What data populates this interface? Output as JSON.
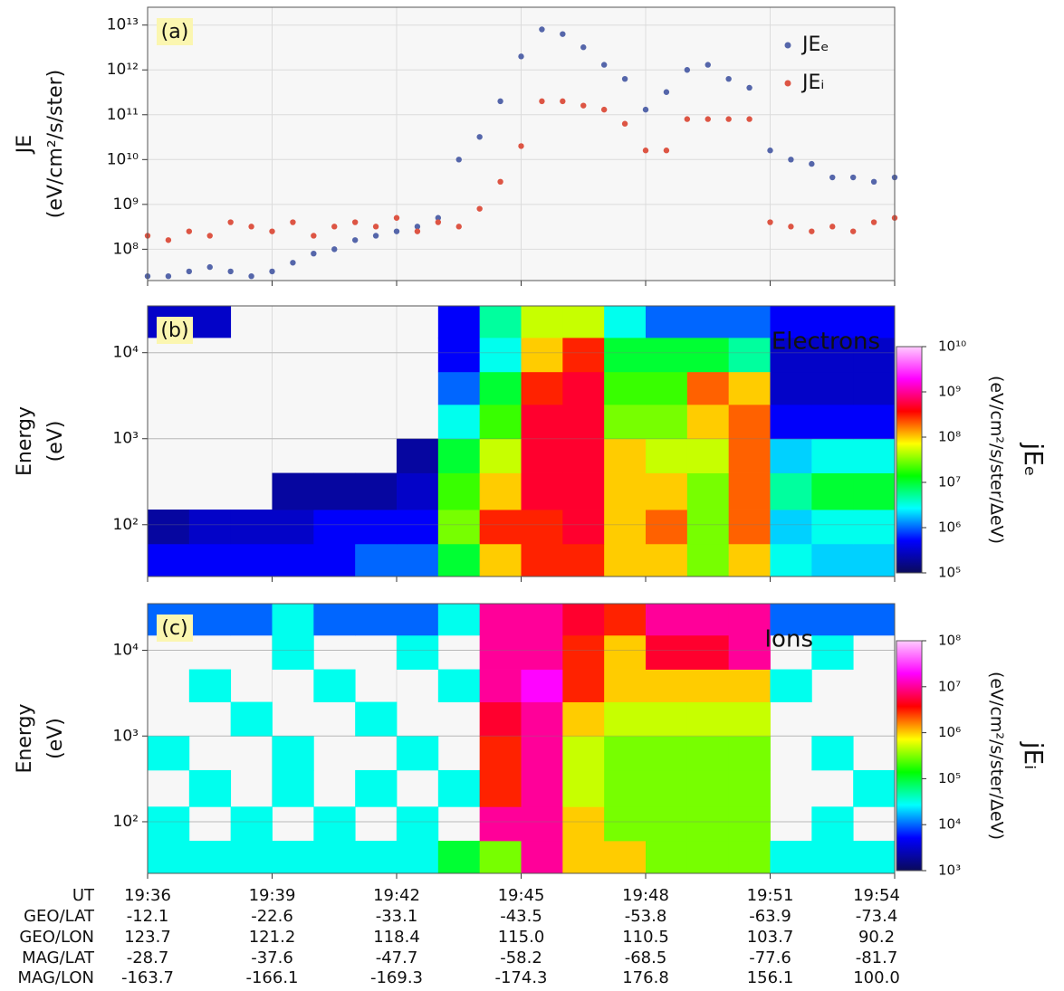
{
  "chart_data": [
    {
      "type": "scatter",
      "panel_label": "(a)",
      "ylabel": "JE",
      "yunit": "(eV/cm²/s/ster)",
      "log_y": true,
      "grid": true,
      "legend": "upper right",
      "xlim": [
        0,
        18
      ],
      "ylim": [
        20000000.0,
        25000000000000.0
      ],
      "yticks": [
        {
          "value": 100000000.0,
          "label": "10⁸"
        },
        {
          "value": 1000000000.0,
          "label": "10⁹"
        },
        {
          "value": 10000000000.0,
          "label": "10¹⁰"
        },
        {
          "value": 100000000000.0,
          "label": "10¹¹"
        },
        {
          "value": 1000000000000.0,
          "label": "10¹²"
        },
        {
          "value": 10000000000000.0,
          "label": "10¹³"
        }
      ],
      "x": [
        0,
        0.5,
        1,
        1.5,
        2,
        2.5,
        3,
        3.5,
        4,
        4.5,
        5,
        5.5,
        6,
        6.5,
        7,
        7.5,
        8,
        8.5,
        9,
        9.5,
        10,
        10.5,
        11,
        11.5,
        12,
        12.5,
        13,
        13.5,
        14,
        14.5,
        15,
        15.5,
        16,
        16.5,
        17,
        17.5,
        18
      ],
      "series": [
        {
          "name": "JEₑ",
          "color": "#5566aa",
          "values": [
            25000000.0,
            25000000.0,
            32000000.0,
            40000000.0,
            32000000.0,
            25000000.0,
            32000000.0,
            50000000.0,
            80000000.0,
            100000000.0,
            160000000.0,
            200000000.0,
            250000000.0,
            320000000.0,
            500000000.0,
            10000000000.0,
            32000000000.0,
            200000000000.0,
            2000000000000.0,
            8000000000000.0,
            6300000000000.0,
            3200000000000.0,
            1300000000000.0,
            630000000000.0,
            130000000000.0,
            320000000000.0,
            1000000000000.0,
            1300000000000.0,
            630000000000.0,
            400000000000.0,
            16000000000.0,
            10000000000.0,
            8000000000.0,
            4000000000.0,
            4000000000.0,
            3200000000.0,
            4000000000.0
          ]
        },
        {
          "name": "JEᵢ",
          "color": "#dd5544",
          "values": [
            200000000.0,
            160000000.0,
            250000000.0,
            200000000.0,
            400000000.0,
            320000000.0,
            250000000.0,
            400000000.0,
            200000000.0,
            320000000.0,
            400000000.0,
            320000000.0,
            500000000.0,
            250000000.0,
            400000000.0,
            320000000.0,
            800000000.0,
            3200000000.0,
            20000000000.0,
            200000000000.0,
            200000000000.0,
            160000000000.0,
            130000000000.0,
            63000000000.0,
            16000000000.0,
            16000000000.0,
            80000000000.0,
            80000000000.0,
            80000000000.0,
            80000000000.0,
            400000000.0,
            320000000.0,
            250000000.0,
            320000000.0,
            250000000.0,
            400000000.0,
            500000000.0
          ]
        }
      ]
    },
    {
      "type": "heatmap",
      "panel_label": "(b)",
      "annotation": "Electrons",
      "ylabel": "Energy",
      "yunit": "(eV)",
      "log_y": true,
      "xlim": [
        0,
        18
      ],
      "ylim": [
        25,
        35000
      ],
      "yticks": [
        {
          "value": 100,
          "label": "10²"
        },
        {
          "value": 1000,
          "label": "10³"
        },
        {
          "value": 10000,
          "label": "10⁴"
        }
      ],
      "x_edges": [
        0,
        1,
        2,
        3,
        4,
        5,
        6,
        7,
        8,
        9,
        10,
        11,
        12,
        13,
        14,
        15,
        16,
        17,
        18
      ],
      "y_edges": [
        25,
        60,
        150,
        400,
        1000,
        2500,
        6000,
        15000,
        35000
      ],
      "z": [
        [
          500000.0,
          500000.0,
          500000.0,
          500000.0,
          500000.0,
          1000000.0,
          1000000.0,
          10000000.0,
          100000000.0,
          300000000.0,
          300000000.0,
          100000000.0,
          100000000.0,
          30000000.0,
          100000000.0,
          3000000.0,
          2000000.0,
          2000000.0
        ],
        [
          200000.0,
          300000.0,
          300000.0,
          300000.0,
          500000.0,
          500000.0,
          500000.0,
          30000000.0,
          300000000.0,
          300000000.0,
          500000000.0,
          100000000.0,
          200000000.0,
          30000000.0,
          200000000.0,
          2000000.0,
          3000000.0,
          3000000.0
        ],
        [
          null,
          null,
          null,
          200000.0,
          200000.0,
          200000.0,
          300000.0,
          20000000.0,
          100000000.0,
          500000000.0,
          500000000.0,
          100000000.0,
          100000000.0,
          30000000.0,
          200000000.0,
          5000000.0,
          10000000.0,
          10000000.0
        ],
        [
          null,
          null,
          null,
          null,
          null,
          null,
          200000.0,
          10000000.0,
          50000000.0,
          500000000.0,
          500000000.0,
          100000000.0,
          50000000.0,
          50000000.0,
          200000000.0,
          2000000.0,
          3000000.0,
          3000000.0
        ],
        [
          null,
          null,
          null,
          null,
          null,
          null,
          null,
          3000000.0,
          20000000.0,
          500000000.0,
          500000000.0,
          30000000.0,
          30000000.0,
          100000000.0,
          200000000.0,
          500000.0,
          500000.0,
          500000.0
        ],
        [
          null,
          null,
          null,
          null,
          null,
          null,
          null,
          1000000.0,
          10000000.0,
          300000000.0,
          500000000.0,
          20000000.0,
          20000000.0,
          200000000.0,
          100000000.0,
          300000.0,
          300000.0,
          300000.0
        ],
        [
          null,
          null,
          null,
          null,
          null,
          null,
          null,
          500000.0,
          3000000.0,
          100000000.0,
          300000000.0,
          10000000.0,
          10000000.0,
          10000000.0,
          5000000.0,
          300000.0,
          300000.0,
          300000.0
        ],
        [
          300000.0,
          300000.0,
          null,
          null,
          null,
          null,
          null,
          500000.0,
          5000000.0,
          50000000.0,
          50000000.0,
          3000000.0,
          1000000.0,
          1000000.0,
          1000000.0,
          500000.0,
          500000.0,
          500000.0
        ]
      ],
      "colorbar_label": "jEₑ",
      "colorbar_unit": "(eV/cm²/s/ster/ΔeV)",
      "clim": [
        100000.0,
        10000000000.0
      ],
      "cticks": [
        {
          "value": 100000.0,
          "label": "10⁵"
        },
        {
          "value": 1000000.0,
          "label": "10⁶"
        },
        {
          "value": 10000000.0,
          "label": "10⁷"
        },
        {
          "value": 100000000.0,
          "label": "10⁸"
        },
        {
          "value": 1000000000.0,
          "label": "10⁹"
        },
        {
          "value": 10000000000.0,
          "label": "10¹⁰"
        }
      ],
      "colormap": [
        "#0a0a5a",
        "#0000ff",
        "#00ffff",
        "#00ff00",
        "#ffff00",
        "#ff0000",
        "#ff00ff",
        "#ffccff"
      ]
    },
    {
      "type": "heatmap",
      "panel_label": "(c)",
      "annotation": "Ions",
      "ylabel": "Energy",
      "yunit": "(eV)",
      "log_y": true,
      "xlim": [
        0,
        18
      ],
      "ylim": [
        25,
        35000
      ],
      "yticks": [
        {
          "value": 100,
          "label": "10²"
        },
        {
          "value": 1000,
          "label": "10³"
        },
        {
          "value": 10000,
          "label": "10⁴"
        }
      ],
      "xticks": [
        {
          "value": 0,
          "label": "19:36"
        },
        {
          "value": 3,
          "label": "19:39"
        },
        {
          "value": 6,
          "label": "19:42"
        },
        {
          "value": 9,
          "label": "19:45"
        },
        {
          "value": 12,
          "label": "19:48"
        },
        {
          "value": 15,
          "label": "19:51"
        },
        {
          "value": 18,
          "label": "19:54"
        }
      ],
      "x_edges": [
        0,
        1,
        2,
        3,
        4,
        5,
        6,
        7,
        8,
        9,
        10,
        11,
        12,
        13,
        14,
        15,
        16,
        17,
        18
      ],
      "y_edges": [
        25,
        60,
        150,
        400,
        1000,
        2500,
        6000,
        15000,
        35000
      ],
      "z": [
        [
          30000.0,
          30000.0,
          30000.0,
          30000.0,
          30000.0,
          30000.0,
          30000.0,
          100000.0,
          300000.0,
          10000000.0,
          1000000.0,
          1000000.0,
          300000.0,
          300000.0,
          300000.0,
          30000.0,
          30000.0,
          30000.0
        ],
        [
          30000.0,
          null,
          30000.0,
          null,
          30000.0,
          null,
          30000.0,
          null,
          10000000.0,
          10000000.0,
          1000000.0,
          300000.0,
          300000.0,
          300000.0,
          300000.0,
          null,
          30000.0,
          null
        ],
        [
          null,
          30000.0,
          null,
          30000.0,
          null,
          30000.0,
          null,
          30000.0,
          3000000.0,
          10000000.0,
          500000.0,
          300000.0,
          300000.0,
          300000.0,
          300000.0,
          null,
          null,
          30000.0
        ],
        [
          30000.0,
          null,
          null,
          30000.0,
          null,
          null,
          30000.0,
          null,
          3000000.0,
          10000000.0,
          500000.0,
          300000.0,
          300000.0,
          300000.0,
          300000.0,
          null,
          30000.0,
          null
        ],
        [
          null,
          null,
          30000.0,
          null,
          null,
          30000.0,
          null,
          null,
          5000000.0,
          10000000.0,
          1000000.0,
          500000.0,
          500000.0,
          500000.0,
          500000.0,
          null,
          null,
          null
        ],
        [
          null,
          30000.0,
          null,
          null,
          30000.0,
          null,
          null,
          30000.0,
          10000000.0,
          20000000.0,
          3000000.0,
          1000000.0,
          1000000.0,
          1000000.0,
          1000000.0,
          30000.0,
          null,
          null
        ],
        [
          null,
          null,
          null,
          30000.0,
          null,
          null,
          30000.0,
          null,
          10000000.0,
          10000000.0,
          3000000.0,
          1000000.0,
          5000000.0,
          5000000.0,
          10000000.0,
          null,
          30000.0,
          null
        ],
        [
          10000.0,
          10000.0,
          10000.0,
          30000.0,
          10000.0,
          10000.0,
          10000.0,
          30000.0,
          10000000.0,
          10000000.0,
          5000000.0,
          3000000.0,
          10000000.0,
          10000000.0,
          10000000.0,
          10000.0,
          10000.0,
          10000.0
        ]
      ],
      "colorbar_label": "jEᵢ",
      "colorbar_unit": "(eV/cm²/s/ster/ΔeV)",
      "clim": [
        1000.0,
        100000000.0
      ],
      "cticks": [
        {
          "value": 1000.0,
          "label": "10³"
        },
        {
          "value": 10000.0,
          "label": "10⁴"
        },
        {
          "value": 100000.0,
          "label": "10⁵"
        },
        {
          "value": 1000000.0,
          "label": "10⁶"
        },
        {
          "value": 10000000.0,
          "label": "10⁷"
        },
        {
          "value": 100000000.0,
          "label": "10⁸"
        }
      ],
      "colormap": [
        "#0a0a5a",
        "#0000ff",
        "#00ffff",
        "#00ff00",
        "#ffff00",
        "#ff0000",
        "#ff00ff",
        "#ffccff"
      ]
    }
  ],
  "ephemeris": {
    "row_labels": [
      "UT",
      "GEO/LAT",
      "GEO/LON",
      "MAG/LAT",
      "MAG/LON"
    ],
    "rows": [
      [
        "-12.1",
        "-22.6",
        "-33.1",
        "-43.5",
        "-53.8",
        "-63.9",
        "-73.4"
      ],
      [
        "123.7",
        "121.2",
        "118.4",
        "115.0",
        "110.5",
        "103.7",
        "90.2"
      ],
      [
        "-28.7",
        "-37.6",
        "-47.7",
        "-58.2",
        "-68.5",
        "-77.6",
        "-81.7"
      ],
      [
        "-163.7",
        "-166.1",
        "-169.3",
        "-174.3",
        "176.8",
        "156.1",
        "100.0"
      ]
    ]
  }
}
